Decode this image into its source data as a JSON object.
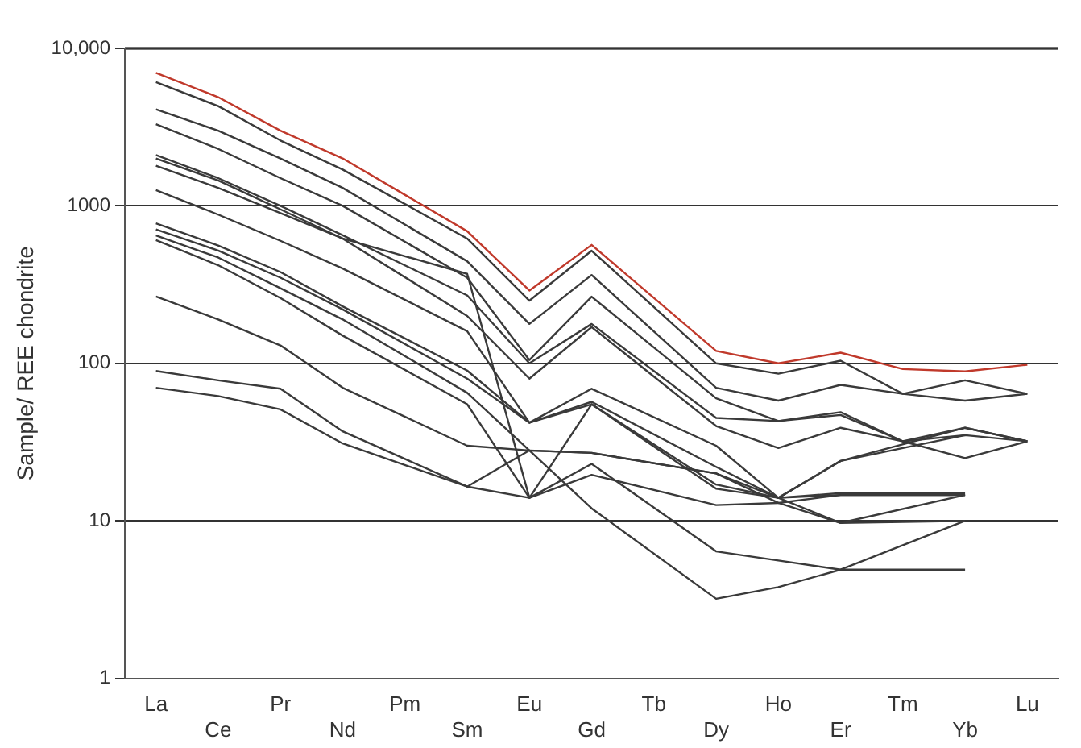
{
  "chart_data": {
    "type": "line",
    "ylabel": "Sample/ REE chondrite",
    "categories": [
      "La",
      "Ce",
      "Pr",
      "Nd",
      "Pm",
      "Sm",
      "Eu",
      "Gd",
      "Tb",
      "Dy",
      "Ho",
      "Er",
      "Tm",
      "Yb",
      "Lu"
    ],
    "log": "y",
    "ylim": [
      1,
      10000
    ],
    "yticks": [
      1,
      10,
      100,
      1000,
      {
        "value": 10000,
        "label": "10,000"
      }
    ],
    "grid": "y",
    "legend": false,
    "series": [
      {
        "color": "#c0392b",
        "values": [
          7000,
          4900,
          3000,
          2000,
          null,
          690,
          290,
          565,
          null,
          120,
          100,
          117,
          92,
          89,
          98
        ]
      },
      {
        "color": "#3a3a3a",
        "values": [
          6100,
          4300,
          2600,
          1700,
          null,
          620,
          250,
          519,
          null,
          100,
          86,
          104,
          64,
          78,
          64
        ]
      },
      {
        "color": "#3a3a3a",
        "values": [
          4100,
          3000,
          2000,
          1300,
          null,
          445,
          178,
          364,
          null,
          70,
          58,
          73,
          64,
          58,
          64
        ]
      },
      {
        "color": "#3a3a3a",
        "values": [
          3300,
          2300,
          1500,
          1000,
          null,
          350,
          105,
          265,
          null,
          60,
          43,
          49,
          32,
          39,
          32
        ]
      },
      {
        "color": "#3a3a3a",
        "values": [
          2100,
          1500,
          1000,
          650,
          null,
          270,
          100,
          178,
          null,
          45,
          43,
          47,
          32,
          35,
          32
        ]
      },
      {
        "color": "#3a3a3a",
        "values": [
          2000,
          1450,
          950,
          620,
          null,
          200,
          80,
          170,
          null,
          40,
          29,
          39,
          32,
          25,
          32
        ]
      },
      {
        "color": "#3a3a3a",
        "values": [
          1800,
          1300,
          900,
          620,
          null,
          370,
          14,
          55,
          null,
          17,
          14,
          24,
          null,
          39,
          32
        ]
      },
      {
        "color": "#3a3a3a",
        "values": [
          1260,
          880,
          600,
          400,
          null,
          160,
          42,
          69,
          null,
          30,
          14,
          24,
          null,
          35,
          null
        ]
      },
      {
        "color": "#3a3a3a",
        "values": [
          774,
          560,
          380,
          230,
          null,
          90,
          42,
          57,
          null,
          22,
          14,
          15,
          null,
          15,
          null
        ]
      },
      {
        "color": "#3a3a3a",
        "values": [
          709,
          520,
          350,
          220,
          null,
          80,
          42,
          55,
          null,
          16,
          14,
          9.7,
          null,
          14.6,
          null
        ]
      },
      {
        "color": "#3a3a3a",
        "values": [
          648,
          470,
          300,
          190,
          null,
          65,
          28,
          27,
          null,
          20,
          13,
          14.6,
          null,
          14.6,
          null
        ]
      },
      {
        "color": "#3a3a3a",
        "values": [
          607,
          420,
          260,
          150,
          null,
          55,
          14,
          23,
          null,
          6.4,
          5.6,
          4.9,
          null,
          4.9,
          null
        ]
      },
      {
        "color": "#3a3a3a",
        "values": [
          266,
          190,
          130,
          70,
          null,
          30,
          28,
          12,
          null,
          3.2,
          3.8,
          4.9,
          null,
          10,
          null
        ]
      },
      {
        "color": "#3a3a3a",
        "values": [
          89.5,
          78,
          69,
          37,
          null,
          16.5,
          28,
          27,
          null,
          20,
          14,
          14.6,
          null,
          14.6,
          null
        ]
      },
      {
        "color": "#3a3a3a",
        "values": [
          70,
          62,
          51,
          31,
          null,
          16.5,
          14,
          19.6,
          null,
          12.6,
          13,
          9.7,
          null,
          10,
          null
        ]
      }
    ]
  }
}
